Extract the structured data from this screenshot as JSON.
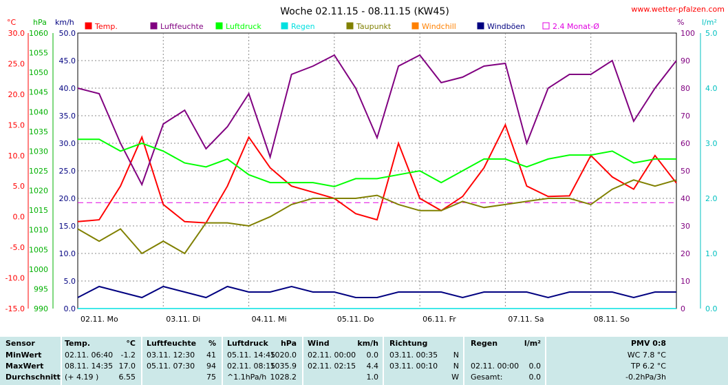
{
  "title": "Woche 02.11.15 - 08.11.15 (KW45)",
  "site": "www.wetter-pfalzen.com",
  "units": {
    "temp": "°C",
    "press": "hPa",
    "wind": "km/h",
    "hum": "%",
    "rain": "l/m²"
  },
  "legend": [
    {
      "label": "Temp.",
      "color": "#ff0000"
    },
    {
      "label": "Luftfeuchte",
      "color": "#800080"
    },
    {
      "label": "Luftdruck",
      "color": "#00ff00"
    },
    {
      "label": "Regen",
      "color": "#00e0e0"
    },
    {
      "label": "Taupunkt",
      "color": "#808000"
    },
    {
      "label": "Windchill",
      "color": "#ff8000"
    },
    {
      "label": "Windböen",
      "color": "#000080"
    },
    {
      "label": "2.4 Monat-Ø",
      "color": "#e000e0"
    }
  ],
  "colors": {
    "temp": "#ff0000",
    "hum": "#800080",
    "press": "#00ff00",
    "rain": "#00e0e0",
    "dew": "#808000",
    "gust": "#000080",
    "avg": "#e000e0",
    "grid": "#888888",
    "temp_axis": "#ff0000",
    "press_axis": "#00b000",
    "wind_axis": "#000080",
    "hum_axis": "#800080",
    "rain_axis": "#00c0c0"
  },
  "axes": {
    "temp_ticks": [
      "30.0",
      "25.0",
      "20.0",
      "15.0",
      "10.0",
      "5.0",
      "0.0",
      "-5.0",
      "-10.0",
      "-15.0"
    ],
    "press_ticks": [
      "1060",
      "1055",
      "1050",
      "1045",
      "1040",
      "1035",
      "1030",
      "1025",
      "1020",
      "1015",
      "1010",
      "1005",
      "1000",
      "995",
      "990"
    ],
    "wind_ticks": [
      "50.0",
      "45.0",
      "40.0",
      "35.0",
      "30.0",
      "25.0",
      "20.0",
      "15.0",
      "10.0",
      "5.0",
      "0.0"
    ],
    "hum_ticks": [
      "100",
      "90",
      "80",
      "70",
      "60",
      "50",
      "40",
      "30",
      "20",
      "10",
      "0"
    ],
    "rain_ticks": [
      "5.0",
      "4.0",
      "3.0",
      "2.0",
      "1.0",
      "0.0"
    ],
    "day_labels": [
      "02.11. Mo",
      "03.11. Di",
      "04.11. Mi",
      "05.11. Do",
      "06.11. Fr",
      "07.11. Sa",
      "08.11. So"
    ]
  },
  "chart_data": {
    "type": "line",
    "title": "Woche 02.11.15 - 08.11.15 (KW45)",
    "x": [
      0,
      0.25,
      0.5,
      0.75,
      1,
      1.25,
      1.5,
      1.75,
      2,
      2.25,
      2.5,
      2.75,
      3,
      3.25,
      3.5,
      3.75,
      4,
      4.25,
      4.5,
      4.75,
      5,
      5.25,
      5.5,
      5.75,
      6,
      6.25,
      6.5,
      6.75,
      7
    ],
    "x_unit": "days since 02.11. 00:00",
    "series": [
      {
        "name": "Temp.",
        "unit": "°C",
        "values": [
          -0.8,
          -0.5,
          5,
          13,
          2,
          -0.8,
          -1,
          5,
          13,
          8,
          5,
          4,
          3,
          0.5,
          -0.5,
          12,
          3,
          1,
          3.3,
          8,
          15,
          5,
          3.3,
          3.4,
          10,
          6.5,
          4.5,
          10,
          5.5
        ]
      },
      {
        "name": "Luftfeuchte",
        "unit": "%",
        "values": [
          80,
          78,
          60,
          45,
          67,
          72,
          58,
          66,
          78,
          55,
          85,
          88,
          92,
          80,
          62,
          88,
          92,
          82,
          84,
          88,
          89,
          60,
          80,
          85,
          85,
          90,
          68,
          80,
          90
        ]
      },
      {
        "name": "Luftdruck",
        "unit": "hPa",
        "values": [
          1033,
          1033,
          1030,
          1032,
          1030,
          1027,
          1026,
          1028,
          1024,
          1022,
          1022,
          1022,
          1021,
          1023,
          1023,
          1024,
          1025,
          1022,
          1025,
          1028,
          1028,
          1026,
          1028,
          1029,
          1029,
          1030,
          1027,
          1028,
          1028
        ]
      },
      {
        "name": "Taupunkt",
        "unit": "°C",
        "values": [
          -2,
          -4,
          -2,
          -6,
          -4,
          -6,
          -1,
          -1,
          -1.5,
          0,
          2,
          3,
          3,
          3,
          3.5,
          2,
          1,
          1,
          2.5,
          1.5,
          2,
          2.5,
          3,
          3,
          2,
          4.5,
          6,
          5,
          6
        ]
      },
      {
        "name": "Windböen",
        "unit": "km/h",
        "values": [
          2,
          4,
          3,
          2,
          4,
          3,
          2,
          4,
          3,
          3,
          4,
          3,
          3,
          2,
          2,
          3,
          3,
          3,
          2,
          3,
          3,
          3,
          2,
          3,
          3,
          3,
          2,
          3,
          3
        ]
      },
      {
        "name": "Regen",
        "unit": "l/m²",
        "values": [
          0,
          0,
          0,
          0,
          0,
          0,
          0,
          0,
          0,
          0,
          0,
          0,
          0,
          0,
          0,
          0,
          0,
          0,
          0,
          0,
          0,
          0,
          0,
          0,
          0,
          0,
          0,
          0,
          0
        ]
      }
    ],
    "avg_line": {
      "name": "2.4 Monat-Ø",
      "unit": "°C",
      "value": 2.3
    },
    "ylim_temp": [
      -15,
      30
    ],
    "ylim_press": [
      990,
      1060
    ],
    "ylim_wind": [
      0,
      50
    ],
    "ylim_hum": [
      0,
      100
    ],
    "ylim_rain": [
      0,
      5
    ],
    "grid": true
  },
  "stats": {
    "sensor": {
      "header": "Sensor",
      "rows": [
        "MinWert",
        "MaxWert",
        "Durchschnitt"
      ]
    },
    "temp": {
      "header": "Temp.",
      "unit": "°C",
      "rows": [
        [
          "02.11.  06:40",
          "-1.2"
        ],
        [
          "08.11.  14:35",
          "17.0"
        ],
        [
          "(+ 4.19 )",
          "6.55"
        ]
      ]
    },
    "hum": {
      "header": "Luftfeuchte",
      "unit": "%",
      "rows": [
        [
          "03.11.  12:30",
          "41"
        ],
        [
          "05.11.  07:30",
          "94"
        ],
        [
          "",
          "75"
        ]
      ]
    },
    "press": {
      "header": "Luftdruck",
      "unit": "hPa",
      "rows": [
        [
          "05.11.  14:45",
          "1020.0"
        ],
        [
          "02.11.  08:15",
          "1035.9"
        ],
        [
          "^1.1hPa/h",
          "1028.2"
        ]
      ]
    },
    "wind": {
      "header": "Wind",
      "unit": "km/h",
      "rows": [
        [
          "02.11.  00:00",
          "0.0"
        ],
        [
          "02.11.  02:15",
          "4.4"
        ],
        [
          "",
          "1.0"
        ]
      ]
    },
    "dir": {
      "header": "Richtung",
      "rows": [
        [
          "03.11.  00:35",
          "N"
        ],
        [
          "03.11.  00:10",
          "N"
        ],
        [
          "",
          "W"
        ]
      ]
    },
    "rain": {
      "header": "Regen",
      "unit": "l/m²",
      "rows": [
        [
          "",
          ""
        ],
        [
          "02.11.  00:00",
          "0.0"
        ],
        [
          "Gesamt:",
          "0.0"
        ]
      ]
    },
    "pmv": {
      "header": "PMV 0:8",
      "rows": [
        "WC 7.8 °C",
        "TP 6.2 °C",
        "-0.2hPa/3h"
      ]
    }
  }
}
